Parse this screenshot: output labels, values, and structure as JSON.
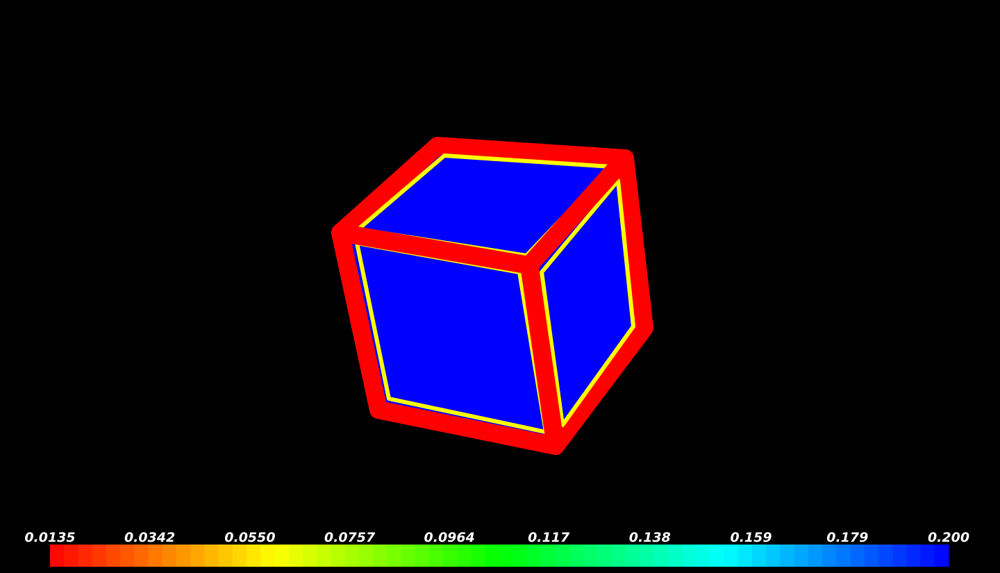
{
  "colorbar": {
    "range": [
      0.0135,
      0.2
    ],
    "ticks": [
      0.0135,
      {
        "value": 0.0342,
        "label": "0.0342"
      },
      {
        "value": 0.055,
        "label": "0.0550"
      },
      0.0757,
      0.0964,
      0.117,
      0.138,
      0.159,
      0.179,
      {
        "value": 0.2,
        "label": "0.200"
      }
    ],
    "colormap": [
      "#ff0000",
      "#ffff00",
      "#00ff00",
      "#00ffff",
      "#0000ff"
    ],
    "n_colors": 64
  }
}
